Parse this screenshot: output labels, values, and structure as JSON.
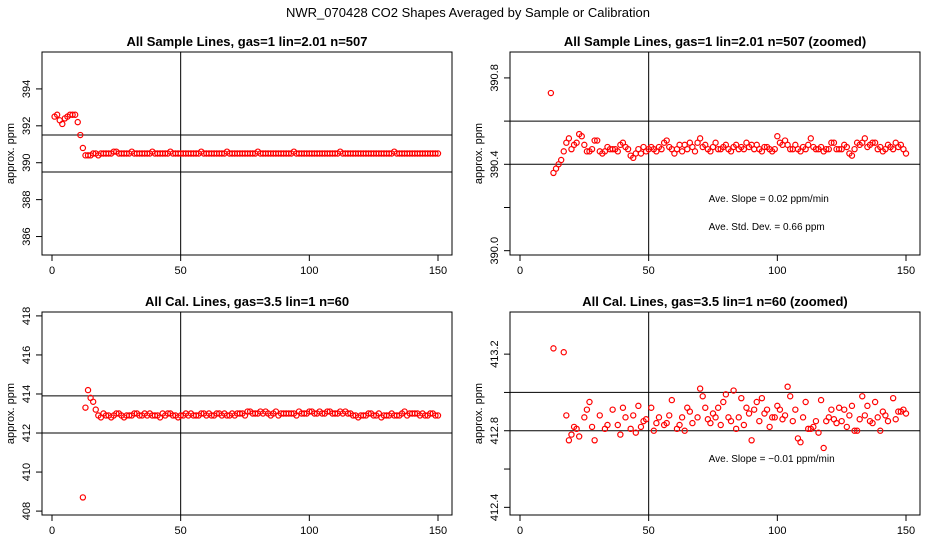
{
  "page": {
    "title": "NWR_070428  CO2 Shapes Averaged by Sample or Calibration"
  },
  "chart_data": [
    {
      "type": "scatter",
      "title": "All Sample Lines, gas=1 lin=2.01 n=507",
      "xlabel": "",
      "ylabel": "approx. ppm",
      "xlim": [
        0,
        150
      ],
      "ylim": [
        385,
        396
      ],
      "xticks": [
        0,
        50,
        100,
        150
      ],
      "yticks": [
        386,
        388,
        390,
        392,
        394
      ],
      "vline": 50,
      "hlines": [
        389.5,
        391.5
      ],
      "annotations": [],
      "x": [
        1,
        2,
        3,
        4,
        5,
        6,
        7,
        8,
        9,
        10,
        11,
        12,
        13,
        14,
        15,
        16,
        17,
        18,
        19,
        20,
        21,
        22,
        23,
        24,
        25,
        26,
        27,
        28,
        29,
        30,
        31,
        32,
        33,
        34,
        35,
        36,
        37,
        38,
        39,
        40,
        41,
        42,
        43,
        44,
        45,
        46,
        47,
        48,
        49,
        50,
        51,
        52,
        53,
        54,
        55,
        56,
        57,
        58,
        59,
        60,
        61,
        62,
        63,
        64,
        65,
        66,
        67,
        68,
        69,
        70,
        71,
        72,
        73,
        74,
        75,
        76,
        77,
        78,
        79,
        80,
        81,
        82,
        83,
        84,
        85,
        86,
        87,
        88,
        89,
        90,
        91,
        92,
        93,
        94,
        95,
        96,
        97,
        98,
        99,
        100,
        101,
        102,
        103,
        104,
        105,
        106,
        107,
        108,
        109,
        110,
        111,
        112,
        113,
        114,
        115,
        116,
        117,
        118,
        119,
        120,
        121,
        122,
        123,
        124,
        125,
        126,
        127,
        128,
        129,
        130,
        131,
        132,
        133,
        134,
        135,
        136,
        137,
        138,
        139,
        140,
        141,
        142,
        143,
        144,
        145,
        146,
        147,
        148,
        149,
        150
      ],
      "values": [
        392.5,
        392.6,
        392.3,
        392.1,
        392.4,
        392.5,
        392.6,
        392.6,
        392.6,
        392.2,
        391.5,
        390.8,
        390.4,
        390.4,
        390.4,
        390.5,
        390.5,
        390.4,
        390.5,
        390.5,
        390.5,
        390.5,
        390.5,
        390.6,
        390.6,
        390.5,
        390.5,
        390.5,
        390.5,
        390.5,
        390.6,
        390.5,
        390.5,
        390.5,
        390.5,
        390.5,
        390.5,
        390.5,
        390.6,
        390.5,
        390.5,
        390.5,
        390.5,
        390.5,
        390.5,
        390.6,
        390.5,
        390.5,
        390.5,
        390.5,
        390.5,
        390.5,
        390.5,
        390.5,
        390.5,
        390.5,
        390.5,
        390.6,
        390.5,
        390.5,
        390.5,
        390.5,
        390.5,
        390.5,
        390.5,
        390.5,
        390.5,
        390.6,
        390.5,
        390.5,
        390.5,
        390.5,
        390.5,
        390.5,
        390.5,
        390.5,
        390.5,
        390.5,
        390.5,
        390.6,
        390.5,
        390.5,
        390.5,
        390.5,
        390.5,
        390.5,
        390.5,
        390.5,
        390.5,
        390.5,
        390.5,
        390.5,
        390.5,
        390.6,
        390.5,
        390.5,
        390.5,
        390.5,
        390.5,
        390.5,
        390.5,
        390.5,
        390.5,
        390.5,
        390.5,
        390.5,
        390.5,
        390.5,
        390.5,
        390.5,
        390.5,
        390.6,
        390.5,
        390.5,
        390.5,
        390.5,
        390.5,
        390.5,
        390.5,
        390.5,
        390.5,
        390.5,
        390.5,
        390.5,
        390.5,
        390.5,
        390.5,
        390.5,
        390.5,
        390.5,
        390.5,
        390.5,
        390.6,
        390.5,
        390.5,
        390.5,
        390.5,
        390.5,
        390.5,
        390.5,
        390.5,
        390.5,
        390.5,
        390.5,
        390.5,
        390.5,
        390.5,
        390.5,
        390.5,
        390.5
      ]
    },
    {
      "type": "scatter",
      "title": "All Sample Lines, gas=1 lin=2.01 n=507 (zoomed)",
      "xlabel": "",
      "ylabel": "approx. ppm",
      "xlim": [
        0,
        150
      ],
      "ylim": [
        389.98,
        390.92
      ],
      "xticks": [
        0,
        50,
        100,
        150
      ],
      "yticks": [
        390.0,
        390.2,
        390.4,
        390.6,
        390.8
      ],
      "ytick_labels": [
        "390.0",
        "",
        "390.4",
        "",
        "390.8"
      ],
      "vline": 50,
      "hlines": [
        390.4,
        390.6
      ],
      "annotations": [
        "Ave. Slope =  0.02  ppm/min",
        "Ave. Std. Dev. =  0.66  ppm"
      ],
      "x": [
        12,
        13,
        14,
        15,
        16,
        17,
        18,
        19,
        20,
        21,
        22,
        23,
        24,
        25,
        26,
        27,
        28,
        29,
        30,
        31,
        32,
        33,
        34,
        35,
        36,
        37,
        38,
        39,
        40,
        41,
        42,
        43,
        44,
        45,
        46,
        47,
        48,
        49,
        50,
        51,
        52,
        53,
        54,
        55,
        56,
        57,
        58,
        59,
        60,
        61,
        62,
        63,
        64,
        65,
        66,
        67,
        68,
        69,
        70,
        71,
        72,
        73,
        74,
        75,
        76,
        77,
        78,
        79,
        80,
        81,
        82,
        83,
        84,
        85,
        86,
        87,
        88,
        89,
        90,
        91,
        92,
        93,
        94,
        95,
        96,
        97,
        98,
        99,
        100,
        101,
        102,
        103,
        104,
        105,
        106,
        107,
        108,
        109,
        110,
        111,
        112,
        113,
        114,
        115,
        116,
        117,
        118,
        119,
        120,
        121,
        122,
        123,
        124,
        125,
        126,
        127,
        128,
        129,
        130,
        131,
        132,
        133,
        134,
        135,
        136,
        137,
        138,
        139,
        140,
        141,
        142,
        143,
        144,
        145,
        146,
        147,
        148,
        149,
        150
      ],
      "values": [
        390.73,
        390.36,
        390.38,
        390.4,
        390.42,
        390.46,
        390.5,
        390.52,
        390.47,
        390.49,
        390.5,
        390.54,
        390.53,
        390.49,
        390.46,
        390.46,
        390.47,
        390.51,
        390.51,
        390.46,
        390.45,
        390.46,
        390.48,
        390.47,
        390.47,
        390.47,
        390.46,
        390.49,
        390.5,
        390.48,
        390.47,
        390.44,
        390.43,
        390.45,
        390.47,
        390.45,
        390.48,
        390.46,
        390.47,
        390.48,
        390.47,
        390.46,
        390.48,
        390.47,
        390.5,
        390.51,
        390.48,
        390.47,
        390.45,
        390.47,
        390.49,
        390.46,
        390.49,
        390.47,
        390.5,
        390.48,
        390.46,
        390.5,
        390.52,
        390.48,
        390.49,
        390.47,
        390.46,
        390.48,
        390.5,
        390.47,
        390.47,
        390.48,
        390.49,
        390.47,
        390.46,
        390.48,
        390.49,
        390.47,
        390.48,
        390.47,
        390.5,
        390.48,
        390.49,
        390.47,
        390.49,
        390.47,
        390.46,
        390.48,
        390.48,
        390.47,
        390.46,
        390.47,
        390.53,
        390.5,
        390.49,
        390.51,
        390.49,
        390.47,
        390.47,
        390.49,
        390.47,
        390.46,
        390.48,
        390.47,
        390.49,
        390.52,
        390.48,
        390.47,
        390.47,
        390.48,
        390.46,
        390.47,
        390.47,
        390.5,
        390.5,
        390.47,
        390.47,
        390.47,
        390.49,
        390.48,
        390.45,
        390.44,
        390.47,
        390.5,
        390.49,
        390.5,
        390.52,
        390.48,
        390.49,
        390.5,
        390.5,
        390.47,
        390.48,
        390.46,
        390.47,
        390.49,
        390.48,
        390.47,
        390.5,
        390.48,
        390.49,
        390.47,
        390.45
      ]
    },
    {
      "type": "scatter",
      "title": "All Cal. Lines, gas=3.5 lin=1 n=60",
      "xlabel": "",
      "ylabel": "approx. ppm",
      "xlim": [
        0,
        150
      ],
      "ylim": [
        407.8,
        418.2
      ],
      "xticks": [
        0,
        50,
        100,
        150
      ],
      "yticks": [
        408,
        410,
        412,
        414,
        416,
        418
      ],
      "vline": 50,
      "hlines": [
        412.0,
        413.9
      ],
      "annotations": [],
      "x": [
        12,
        13,
        14,
        15,
        16,
        17,
        18,
        19,
        20,
        21,
        22,
        23,
        24,
        25,
        26,
        27,
        28,
        29,
        30,
        31,
        32,
        33,
        34,
        35,
        36,
        37,
        38,
        39,
        40,
        41,
        42,
        43,
        44,
        45,
        46,
        47,
        48,
        49,
        50,
        51,
        52,
        53,
        54,
        55,
        56,
        57,
        58,
        59,
        60,
        61,
        62,
        63,
        64,
        65,
        66,
        67,
        68,
        69,
        70,
        71,
        72,
        73,
        74,
        75,
        76,
        77,
        78,
        79,
        80,
        81,
        82,
        83,
        84,
        85,
        86,
        87,
        88,
        89,
        90,
        91,
        92,
        93,
        94,
        95,
        96,
        97,
        98,
        99,
        100,
        101,
        102,
        103,
        104,
        105,
        106,
        107,
        108,
        109,
        110,
        111,
        112,
        113,
        114,
        115,
        116,
        117,
        118,
        119,
        120,
        121,
        122,
        123,
        124,
        125,
        126,
        127,
        128,
        129,
        130,
        131,
        132,
        133,
        134,
        135,
        136,
        137,
        138,
        139,
        140,
        141,
        142,
        143,
        144,
        145,
        146,
        147,
        148,
        149,
        150
      ],
      "values": [
        408.7,
        413.3,
        414.2,
        413.8,
        413.6,
        413.2,
        412.9,
        412.8,
        413.0,
        412.9,
        412.9,
        412.8,
        412.9,
        413.0,
        413.0,
        412.9,
        412.8,
        412.9,
        412.9,
        412.9,
        413.0,
        413.0,
        412.9,
        412.9,
        413.0,
        412.9,
        413.0,
        412.9,
        412.9,
        412.9,
        412.8,
        413.0,
        412.9,
        413.0,
        413.0,
        412.9,
        412.9,
        412.8,
        412.9,
        412.9,
        413.0,
        412.9,
        413.0,
        412.9,
        412.9,
        412.9,
        413.0,
        413.0,
        412.9,
        413.0,
        412.9,
        412.9,
        413.0,
        413.0,
        412.9,
        413.0,
        412.9,
        412.9,
        413.0,
        412.9,
        413.0,
        413.0,
        413.0,
        412.9,
        413.1,
        413.1,
        413.0,
        413.0,
        413.0,
        413.1,
        413.0,
        413.1,
        413.0,
        412.9,
        413.0,
        413.1,
        412.9,
        413.0,
        413.0,
        413.0,
        413.0,
        413.0,
        413.0,
        412.9,
        413.1,
        413.0,
        413.0,
        413.0,
        413.1,
        413.1,
        413.0,
        413.0,
        413.1,
        413.0,
        413.0,
        413.1,
        413.1,
        413.0,
        413.0,
        413.0,
        413.1,
        413.0,
        413.1,
        413.0,
        413.0,
        412.9,
        412.9,
        412.8,
        412.9,
        412.9,
        412.9,
        413.0,
        413.0,
        412.9,
        412.9,
        413.0,
        412.8,
        412.9,
        412.9,
        412.9,
        413.0,
        412.9,
        412.9,
        412.9,
        413.0,
        413.1,
        412.9,
        413.0,
        413.0,
        413.0,
        413.0,
        412.9,
        413.0,
        412.9,
        412.9,
        413.0,
        413.0,
        412.9,
        412.9
      ]
    },
    {
      "type": "scatter",
      "title": "All Cal. Lines, gas=3.5 lin=1 n=60 (zoomed)",
      "xlabel": "",
      "ylabel": "approx. ppm",
      "xlim": [
        0,
        150
      ],
      "ylim": [
        412.36,
        413.42
      ],
      "xticks": [
        0,
        50,
        100,
        150
      ],
      "yticks": [
        412.4,
        412.6,
        412.8,
        413.0,
        413.2
      ],
      "ytick_labels": [
        "412.4",
        "",
        "412.8",
        "",
        "413.2"
      ],
      "vline": 50,
      "hlines": [
        412.8,
        413.0
      ],
      "annotations": [
        "Ave. Slope =  −0.01  ppm/min"
      ],
      "x": [
        13,
        17,
        18,
        19,
        20,
        21,
        22,
        23,
        25,
        26,
        27,
        28,
        29,
        31,
        33,
        34,
        36,
        38,
        39,
        40,
        41,
        43,
        44,
        45,
        46,
        47,
        48,
        49,
        51,
        52,
        53,
        54,
        56,
        57,
        58,
        59,
        61,
        62,
        63,
        64,
        65,
        66,
        67,
        69,
        70,
        71,
        72,
        73,
        74,
        75,
        76,
        77,
        78,
        79,
        80,
        81,
        82,
        83,
        84,
        85,
        86,
        87,
        88,
        89,
        90,
        91,
        92,
        93,
        94,
        95,
        96,
        97,
        98,
        99,
        100,
        101,
        102,
        103,
        104,
        105,
        106,
        107,
        108,
        109,
        110,
        111,
        112,
        113,
        114,
        115,
        116,
        117,
        118,
        119,
        120,
        121,
        122,
        123,
        124,
        125,
        126,
        127,
        128,
        129,
        130,
        131,
        132,
        133,
        134,
        135,
        136,
        137,
        138,
        139,
        140,
        141,
        142,
        143,
        145,
        146,
        147,
        148,
        149,
        150
      ],
      "values": [
        413.23,
        413.21,
        412.88,
        412.75,
        412.78,
        412.82,
        412.81,
        412.77,
        412.87,
        412.91,
        412.95,
        412.82,
        412.75,
        412.88,
        412.81,
        412.83,
        412.91,
        412.83,
        412.78,
        412.92,
        412.87,
        412.81,
        412.88,
        412.79,
        412.93,
        412.82,
        412.85,
        412.86,
        412.92,
        412.8,
        412.84,
        412.87,
        412.83,
        412.84,
        412.88,
        412.96,
        412.81,
        412.83,
        412.87,
        412.8,
        412.92,
        412.9,
        412.84,
        412.87,
        413.02,
        412.98,
        412.92,
        412.86,
        412.84,
        412.89,
        412.87,
        412.92,
        412.83,
        412.95,
        412.99,
        412.87,
        412.85,
        413.01,
        412.81,
        412.87,
        412.97,
        412.83,
        412.92,
        412.89,
        412.75,
        412.91,
        412.95,
        412.85,
        412.97,
        412.89,
        412.91,
        412.82,
        412.87,
        412.87,
        412.93,
        412.91,
        412.86,
        412.88,
        413.03,
        412.98,
        412.85,
        412.91,
        412.76,
        412.74,
        412.87,
        412.95,
        412.81,
        412.81,
        412.82,
        412.85,
        412.79,
        412.96,
        412.71,
        412.85,
        412.87,
        412.91,
        412.86,
        412.84,
        412.92,
        412.85,
        412.91,
        412.82,
        412.88,
        412.93,
        412.8,
        412.8,
        412.86,
        412.98,
        412.88,
        412.93,
        412.85,
        412.84,
        412.95,
        412.87,
        412.8,
        412.9,
        412.88,
        412.85,
        412.97,
        412.86,
        412.9,
        412.9,
        412.91,
        412.89
      ]
    }
  ]
}
